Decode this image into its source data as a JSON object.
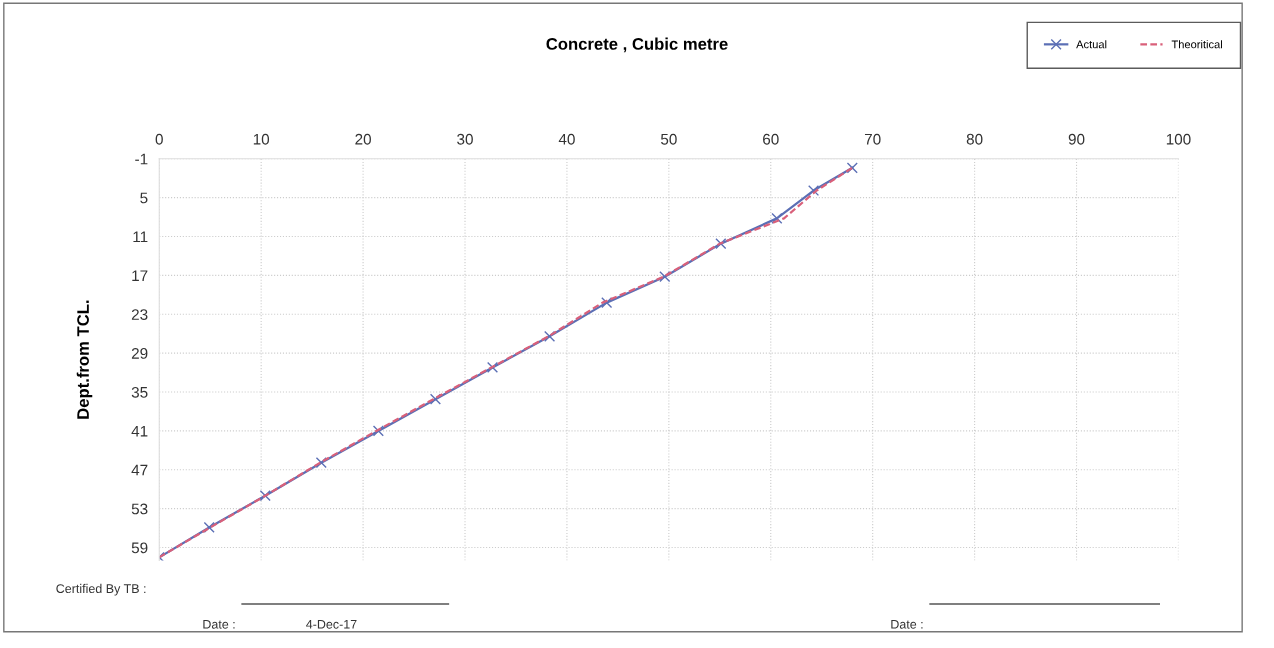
{
  "chart_data": {
    "type": "line",
    "title": "Concrete , Cubic metre",
    "ylabel": "Dept.from TCL.",
    "xlim": [
      0,
      100
    ],
    "xticks": [
      0,
      10,
      20,
      30,
      40,
      50,
      60,
      70,
      80,
      90,
      100
    ],
    "ylim": [
      61,
      -1
    ],
    "yticks": [
      -1,
      5,
      11,
      17,
      23,
      29,
      35,
      41,
      47,
      53,
      59
    ],
    "grid": true,
    "legend": "top right",
    "series": [
      {
        "name": "Actual",
        "color": "#5b6fb5",
        "marker": "cross",
        "line_style": "solid",
        "x": [
          0,
          4.9,
          10.4,
          15.9,
          21.5,
          27.1,
          32.7,
          38.3,
          43.9,
          49.6,
          55.1,
          60.6,
          64.2,
          68.0
        ],
        "values": [
          60.5,
          55.9,
          51.0,
          45.9,
          41.0,
          36.1,
          31.2,
          26.4,
          21.2,
          17.2,
          12.1,
          8.2,
          3.9,
          0.4
        ]
      },
      {
        "name": "Theoritical",
        "color": "#d9607a",
        "marker": "none",
        "line_style": "dashed",
        "x": [
          0,
          5.0,
          10.4,
          15.8,
          21.3,
          26.9,
          32.6,
          38.2,
          43.5,
          49.5,
          55.0,
          61.3,
          64.5,
          68.0
        ],
        "values": [
          60.5,
          55.9,
          51.0,
          45.9,
          41.0,
          36.1,
          31.2,
          26.4,
          21.2,
          17.2,
          12.1,
          8.2,
          3.9,
          0.4
        ]
      }
    ],
    "annotations": [
      "Certified By TB :",
      "Date :",
      "4-Dec-17",
      "Date :"
    ]
  }
}
